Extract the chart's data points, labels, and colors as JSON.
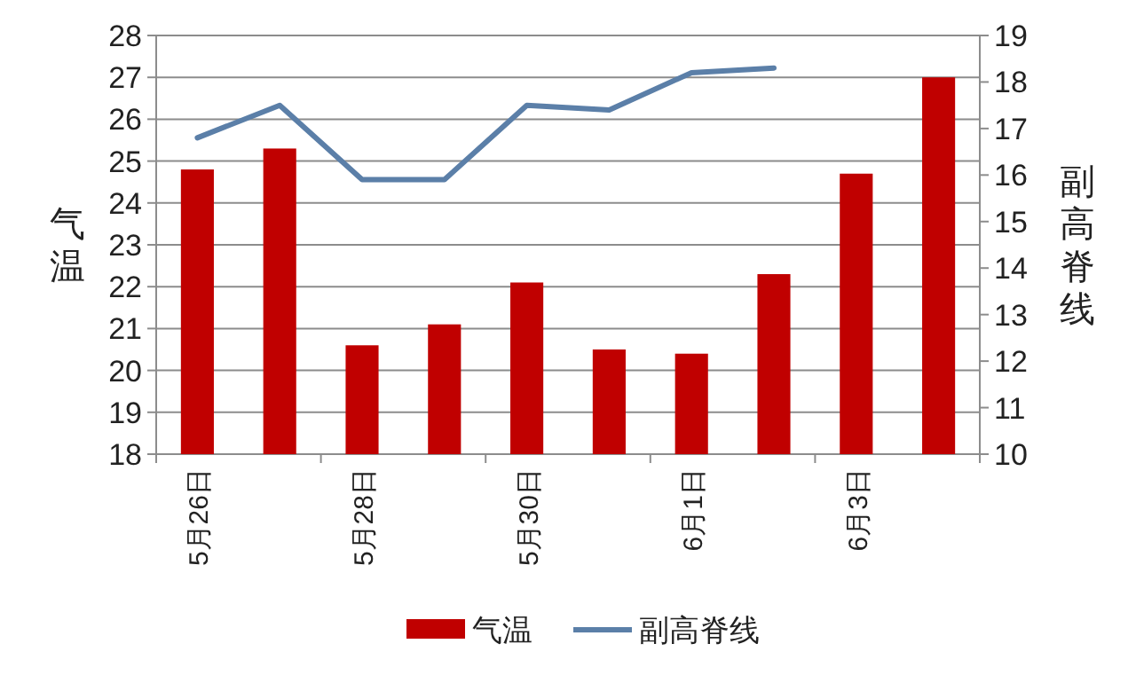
{
  "chart_data": {
    "type": "bar",
    "categories": [
      "5月26日",
      null,
      "5月28日",
      null,
      "5月30日",
      null,
      "6月1日",
      null,
      "6月3日",
      null
    ],
    "series": [
      {
        "name": "气温",
        "color": "#c00000",
        "values": [
          24.8,
          25.3,
          20.6,
          21.1,
          22.1,
          20.5,
          20.4,
          22.3,
          24.7,
          27.0
        ]
      },
      {
        "name": "副高脊线",
        "type": "line",
        "axis": "y2",
        "color": "#5b7fa8",
        "values": [
          16.8,
          17.5,
          15.9,
          15.9,
          17.5,
          17.4,
          18.2,
          18.3,
          null,
          null
        ]
      }
    ],
    "ylabel": "气温",
    "y2label": "副高脊线",
    "ylim": [
      18,
      28
    ],
    "yticks": [
      18,
      19,
      20,
      21,
      22,
      23,
      24,
      25,
      26,
      27,
      28
    ],
    "y2lim": [
      10,
      19
    ],
    "y2ticks": [
      10,
      11,
      12,
      13,
      14,
      15,
      16,
      17,
      18,
      19
    ],
    "grid": "y",
    "legend": "bottom"
  }
}
